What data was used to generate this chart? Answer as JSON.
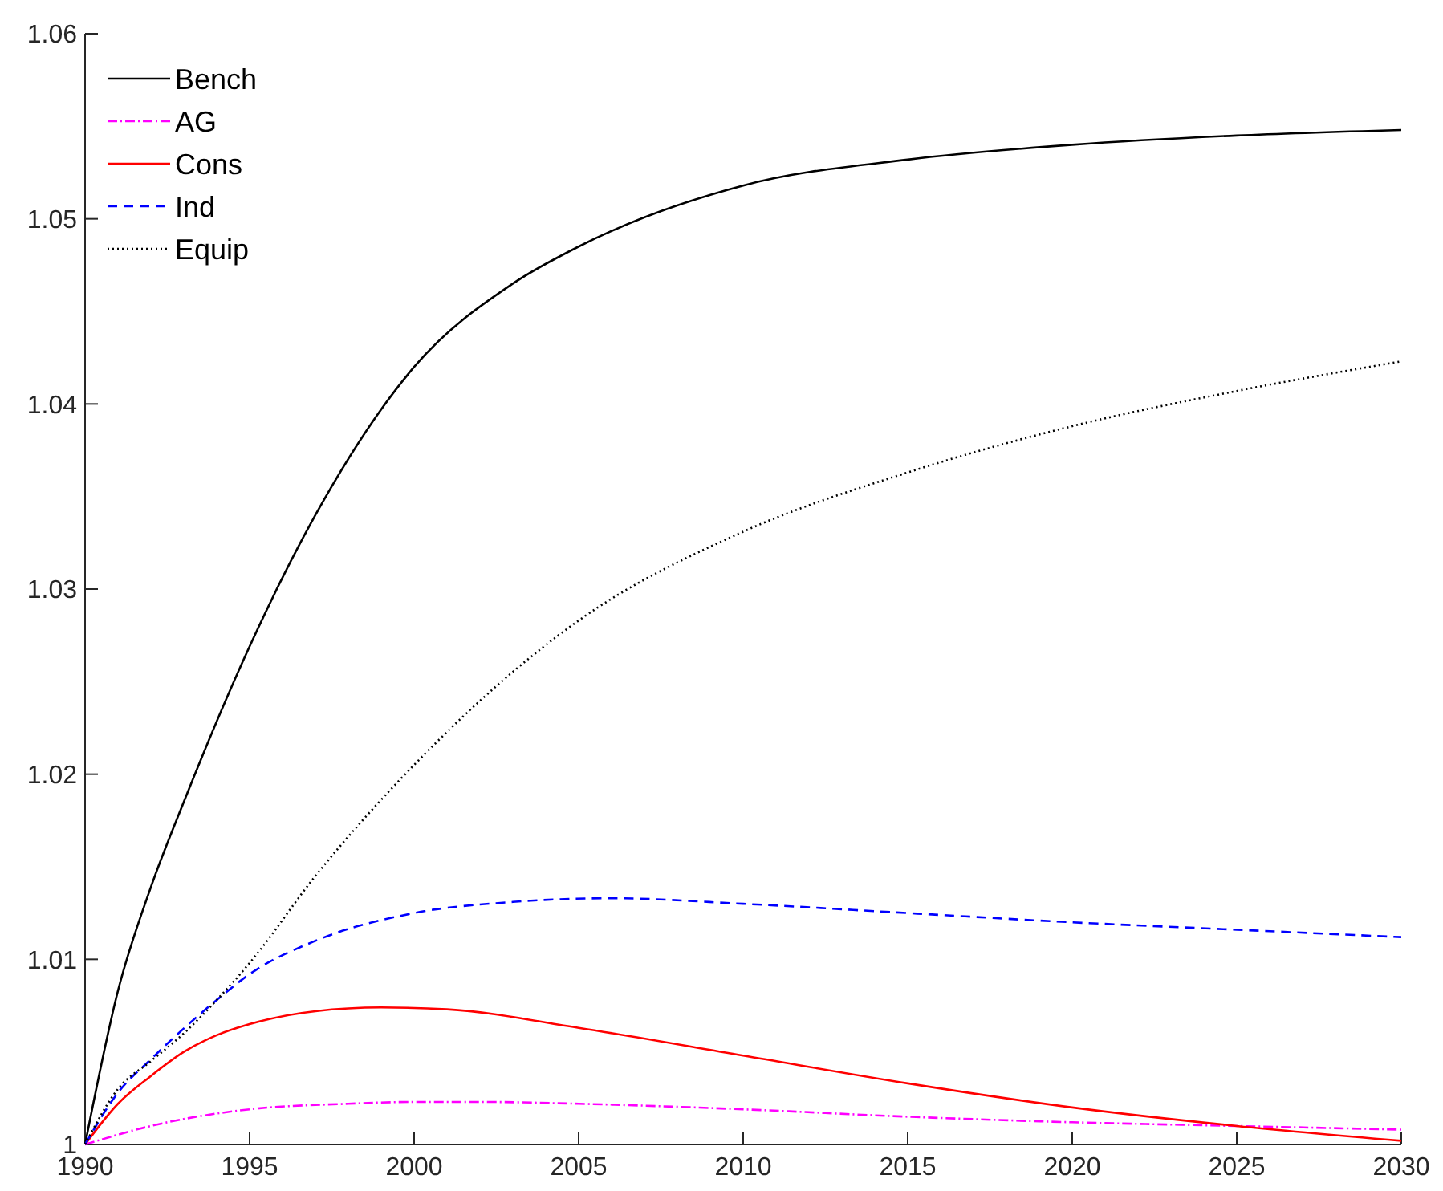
{
  "chart_data": {
    "type": "line",
    "xlim": [
      1990,
      2030
    ],
    "xticks": [
      1990,
      1995,
      2000,
      2005,
      2010,
      2015,
      2020,
      2025,
      2030
    ],
    "ylim": [
      1,
      1.06
    ],
    "yticks": [
      1,
      1.01,
      1.02,
      1.03,
      1.04,
      1.05,
      1.06
    ],
    "grid": false,
    "legend": "top left",
    "marker": "none",
    "series": [
      {
        "name": "Bench",
        "color": "#000000",
        "line_style": "solid",
        "x": [
          1990,
          1991,
          1992,
          1993,
          1995,
          1997,
          2000,
          2003,
          2005,
          2010,
          2015,
          2020,
          2025,
          2030
        ],
        "values": [
          1,
          1.0083,
          1.0139,
          1.0185,
          1.0269,
          1.034,
          1.042,
          1.0465,
          1.0485,
          1.0518,
          1.0532,
          1.054,
          1.0545,
          1.0548
        ]
      },
      {
        "name": "AG",
        "color": "#ff00ff",
        "line_style": "dashdot",
        "x": [
          1990,
          1992,
          1995,
          1998,
          2000,
          2002,
          2005,
          2010,
          2015,
          2020,
          2025,
          2030
        ],
        "values": [
          1,
          1.001,
          1.0019,
          1.0022,
          1.0023,
          1.0023,
          1.0022,
          1.0019,
          1.0015,
          1.0012,
          1.001,
          1.0008
        ]
      },
      {
        "name": "Cons",
        "color": "#ff0000",
        "line_style": "solid",
        "x": [
          1990,
          1991,
          1992,
          1993,
          1994,
          1995,
          1997,
          1999,
          2001,
          2005,
          2010,
          2015,
          2020,
          2025,
          2030
        ],
        "values": [
          1,
          1.0022,
          1.0037,
          1.005,
          1.0059,
          1.0065,
          1.0072,
          1.0074,
          1.0073,
          1.0063,
          1.0048,
          1.0033,
          1.002,
          1.001,
          1.0002
        ]
      },
      {
        "name": "Ind",
        "color": "#0000ff",
        "line_style": "dashed",
        "x": [
          1990,
          1991,
          1992,
          1994,
          1995,
          1997,
          2000,
          2003,
          2006,
          2010,
          2015,
          2020,
          2025,
          2030
        ],
        "values": [
          1,
          1.0028,
          1.0046,
          1.0078,
          1.0092,
          1.011,
          1.0125,
          1.0131,
          1.0133,
          1.013,
          1.0125,
          1.012,
          1.0116,
          1.0112
        ]
      },
      {
        "name": "Equip",
        "color": "#000000",
        "line_style": "dotted",
        "x": [
          1990,
          1991,
          1992,
          1993,
          1994,
          1995,
          1997,
          2000,
          2005,
          2010,
          2015,
          2020,
          2025,
          2030
        ],
        "values": [
          1,
          1.003,
          1.0045,
          1.006,
          1.0078,
          1.0098,
          1.0145,
          1.0205,
          1.0283,
          1.0331,
          1.0363,
          1.0388,
          1.0407,
          1.0423
        ]
      }
    ]
  }
}
